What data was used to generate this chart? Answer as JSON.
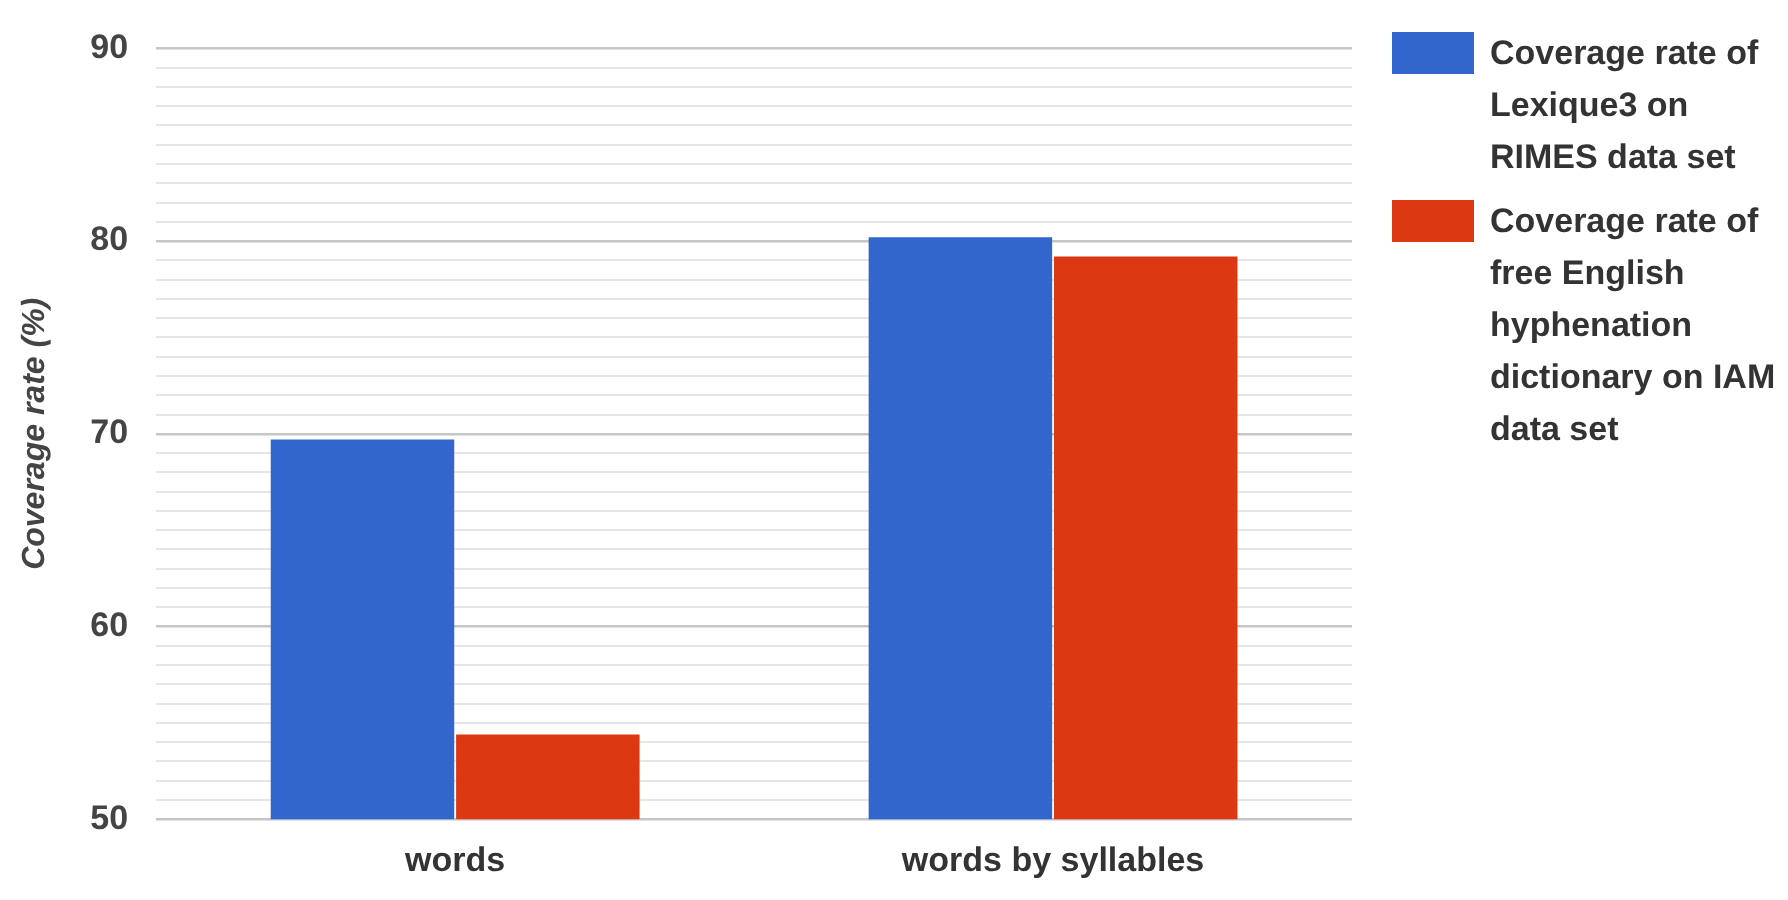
{
  "chart_data": {
    "type": "bar",
    "ylabel": "Coverage rate (%)",
    "categories": [
      "words",
      "words by syllables"
    ],
    "series": [
      {
        "name": "Coverage rate of Lexique3 on RIMES data set",
        "color": "#3366cc",
        "values": [
          69.7,
          80.2
        ]
      },
      {
        "name": "Coverage rate of free English hyphenation dictionary on IAM data set",
        "color": "#dc3912",
        "values": [
          54.4,
          79.2
        ]
      }
    ],
    "ylim": [
      50,
      90
    ],
    "yticks": [
      50,
      {
        "value": 51,
        "label": null
      },
      {
        "value": 52,
        "label": null
      },
      {
        "value": 53,
        "label": null
      },
      {
        "value": 54,
        "label": null
      },
      {
        "value": 55,
        "label": null
      },
      {
        "value": 56,
        "label": null
      },
      {
        "value": 57,
        "label": null
      },
      {
        "value": 58,
        "label": null
      },
      {
        "value": 59,
        "label": null
      },
      60,
      {
        "value": 61,
        "label": null
      },
      {
        "value": 62,
        "label": null
      },
      {
        "value": 63,
        "label": null
      },
      {
        "value": 64,
        "label": null
      },
      {
        "value": 65,
        "label": null
      },
      {
        "value": 66,
        "label": null
      },
      {
        "value": 67,
        "label": null
      },
      {
        "value": 68,
        "label": null
      },
      {
        "value": 69,
        "label": null
      },
      70,
      {
        "value": 71,
        "label": null
      },
      {
        "value": 72,
        "label": null
      },
      {
        "value": 73,
        "label": null
      },
      {
        "value": 74,
        "label": null
      },
      {
        "value": 75,
        "label": null
      },
      {
        "value": 76,
        "label": null
      },
      {
        "value": 77,
        "label": null
      },
      {
        "value": 78,
        "label": null
      },
      {
        "value": 79,
        "label": null
      },
      80,
      {
        "value": 81,
        "label": null
      },
      {
        "value": 82,
        "label": null
      },
      {
        "value": 83,
        "label": null
      },
      {
        "value": 84,
        "label": null
      },
      {
        "value": 85,
        "label": null
      },
      {
        "value": 86,
        "label": null
      },
      {
        "value": 87,
        "label": null
      },
      {
        "value": 88,
        "label": null
      },
      {
        "value": 89,
        "label": null
      },
      90
    ],
    "grid": "y",
    "legend": "right"
  }
}
